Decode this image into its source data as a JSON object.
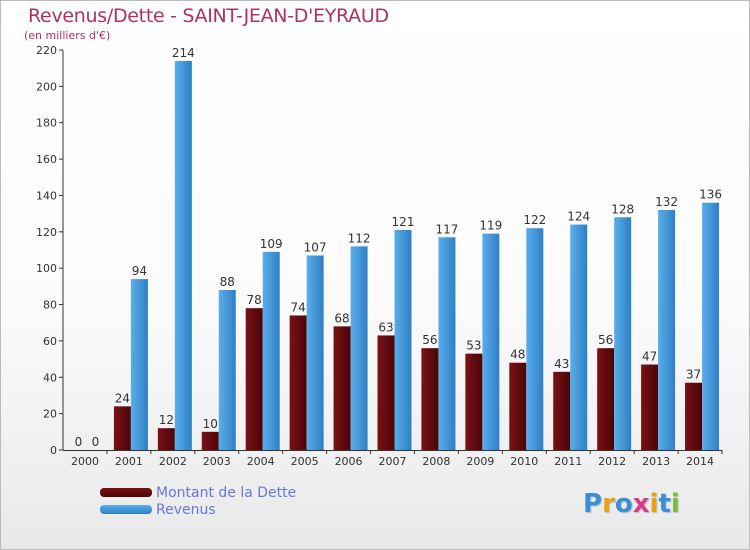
{
  "title": "Revenus/Dette - SAINT-JEAN-D'EYRAUD",
  "subtitle": "(en milliers d'€)",
  "logo": {
    "text": "Proxiti",
    "letters": [
      {
        "ch": "P",
        "color": "#3b8fd6"
      },
      {
        "ch": "r",
        "color": "#e8a11a"
      },
      {
        "ch": "o",
        "color": "#3b8fd6"
      },
      {
        "ch": "x",
        "color": "#d93b8a"
      },
      {
        "ch": "i",
        "color": "#e8a11a"
      },
      {
        "ch": "t",
        "color": "#3b8fd6"
      },
      {
        "ch": "i",
        "color": "#7cbd3c"
      }
    ]
  },
  "colors": {
    "dette_top": "#7a1116",
    "dette_bottom": "#4a0608",
    "revenus_top": "#5aaeea",
    "revenus_bottom": "#2f7fc4",
    "axis": "#333333",
    "grid": "#dddddd",
    "text": "#333333"
  },
  "chart_data": {
    "type": "bar",
    "categories": [
      "2000",
      "2001",
      "2002",
      "2003",
      "2004",
      "2005",
      "2006",
      "2007",
      "2008",
      "2009",
      "2010",
      "2011",
      "2012",
      "2013",
      "2014"
    ],
    "series": [
      {
        "name": "Montant de la Dette",
        "values": [
          0,
          24,
          12,
          10,
          78,
          74,
          68,
          63,
          56,
          53,
          48,
          43,
          56,
          47,
          37
        ]
      },
      {
        "name": "Revenus",
        "values": [
          0,
          94,
          214,
          88,
          109,
          107,
          112,
          121,
          117,
          119,
          122,
          124,
          128,
          132,
          136
        ]
      }
    ],
    "ylim": [
      0,
      220
    ],
    "yticks": [
      0,
      20,
      40,
      60,
      80,
      100,
      120,
      140,
      160,
      180,
      200,
      220
    ],
    "grid": false,
    "legend": "bottom-left"
  }
}
